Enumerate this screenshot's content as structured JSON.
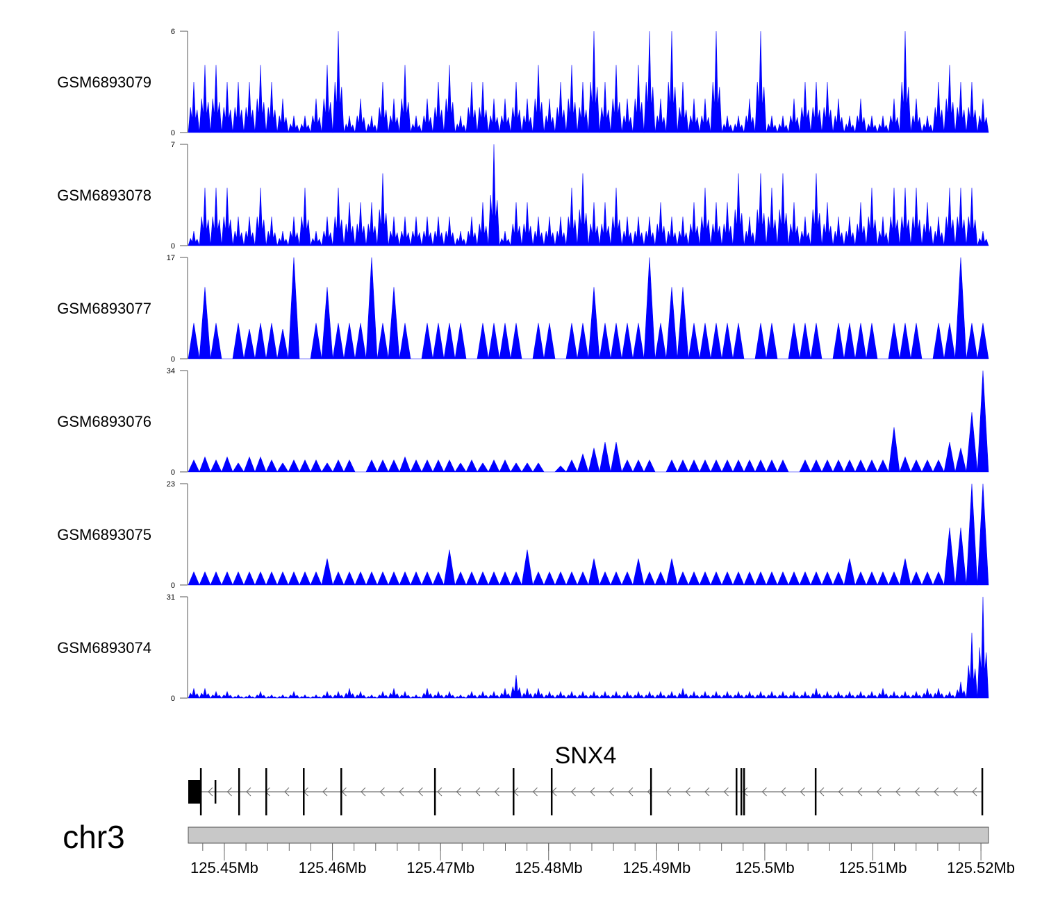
{
  "chart_data": {
    "type": "area",
    "chromosome": "chr3",
    "xlim_mb": [
      125.44666,
      125.5207
    ],
    "x_ticks": [
      "125.45Mb",
      "125.46Mb",
      "125.47Mb",
      "125.48Mb",
      "125.49Mb",
      "125.5Mb",
      "125.51Mb",
      "125.52Mb"
    ],
    "x_tick_values_mb": [
      125.45,
      125.46,
      125.47,
      125.48,
      125.49,
      125.5,
      125.51,
      125.52
    ],
    "minor_tick_step_mb": 0.002,
    "fill_color": "#0000ff",
    "bins": 72,
    "tracks": [
      {
        "name": "GSM6893079",
        "ylim": [
          0,
          6
        ],
        "ymax_label": "6",
        "ymin_label": "0",
        "style": "spiky",
        "values": [
          3,
          4,
          4,
          3,
          3,
          3,
          4,
          3,
          2,
          1,
          1,
          2,
          4,
          6,
          1,
          2,
          1,
          3,
          2,
          4,
          1,
          2,
          3,
          4,
          1,
          3,
          3,
          2,
          2,
          3,
          2,
          4,
          2,
          3,
          4,
          3,
          6,
          3,
          4,
          2,
          4,
          6,
          2,
          6,
          3,
          2,
          2,
          6,
          1,
          1,
          2,
          6,
          1,
          1,
          2,
          3,
          3,
          3,
          2,
          1,
          2,
          1,
          1,
          2,
          6,
          2,
          1,
          3,
          4,
          3,
          3,
          2
        ]
      },
      {
        "name": "GSM6893078",
        "ylim": [
          0,
          7
        ],
        "ymax_label": "7",
        "ymin_label": "0",
        "style": "spiky",
        "values": [
          1,
          4,
          4,
          4,
          2,
          2,
          4,
          2,
          1,
          2,
          4,
          1,
          2,
          4,
          3,
          3,
          3,
          5,
          2,
          2,
          2,
          2,
          2,
          2,
          1,
          2,
          3,
          7,
          1,
          3,
          3,
          2,
          2,
          2,
          4,
          5,
          3,
          3,
          4,
          2,
          2,
          2,
          3,
          2,
          2,
          3,
          4,
          3,
          3,
          5,
          2,
          5,
          4,
          5,
          3,
          2,
          5,
          3,
          2,
          2,
          3,
          4,
          2,
          4,
          4,
          4,
          3,
          2,
          4,
          4,
          4,
          1
        ]
      },
      {
        "name": "GSM6893077",
        "ylim": [
          0,
          17
        ],
        "ymax_label": "17",
        "ymin_label": "0",
        "style": "triangles",
        "values": [
          6,
          12,
          6,
          0,
          6,
          5,
          6,
          6,
          5,
          17,
          0,
          6,
          12,
          6,
          6,
          6,
          17,
          6,
          12,
          6,
          0,
          6,
          6,
          6,
          6,
          0,
          6,
          6,
          6,
          6,
          0,
          6,
          6,
          0,
          6,
          6,
          12,
          6,
          6,
          6,
          6,
          17,
          6,
          12,
          12,
          6,
          6,
          6,
          6,
          6,
          0,
          6,
          6,
          0,
          6,
          6,
          6,
          0,
          6,
          6,
          6,
          6,
          0,
          6,
          6,
          6,
          0,
          6,
          6,
          17,
          6,
          6
        ]
      },
      {
        "name": "GSM6893076",
        "ylim": [
          0,
          34
        ],
        "ymax_label": "34",
        "ymin_label": "0",
        "style": "triangles",
        "values": [
          4,
          5,
          4,
          5,
          3,
          5,
          5,
          4,
          3,
          4,
          4,
          4,
          3,
          4,
          4,
          0,
          4,
          4,
          4,
          5,
          4,
          4,
          4,
          4,
          3,
          4,
          3,
          4,
          4,
          3,
          3,
          3,
          0,
          2,
          4,
          6,
          8,
          10,
          10,
          4,
          4,
          4,
          0,
          4,
          4,
          4,
          4,
          4,
          4,
          4,
          4,
          4,
          4,
          4,
          0,
          4,
          4,
          4,
          4,
          4,
          4,
          4,
          4,
          15,
          5,
          4,
          4,
          4,
          10,
          8,
          20,
          34
        ]
      },
      {
        "name": "GSM6893075",
        "ylim": [
          0,
          23
        ],
        "ymax_label": "23",
        "ymin_label": "0",
        "style": "triangles",
        "values": [
          3,
          3,
          3,
          3,
          3,
          3,
          3,
          3,
          3,
          3,
          3,
          3,
          6,
          3,
          3,
          3,
          3,
          3,
          3,
          3,
          3,
          3,
          3,
          8,
          3,
          3,
          3,
          3,
          3,
          3,
          8,
          3,
          3,
          3,
          3,
          3,
          6,
          3,
          3,
          3,
          6,
          3,
          3,
          6,
          3,
          3,
          3,
          3,
          3,
          3,
          3,
          3,
          3,
          3,
          3,
          3,
          3,
          3,
          3,
          6,
          3,
          3,
          3,
          3,
          6,
          3,
          3,
          3,
          13,
          13,
          23,
          23
        ]
      },
      {
        "name": "GSM6893074",
        "ylim": [
          0,
          31
        ],
        "ymax_label": "31",
        "ymin_label": "0",
        "style": "spiky",
        "values": [
          3,
          3,
          2,
          2,
          1,
          1,
          2,
          1,
          1,
          2,
          1,
          1,
          2,
          2,
          3,
          2,
          1,
          2,
          3,
          2,
          1,
          3,
          2,
          2,
          1,
          2,
          2,
          2,
          3,
          7,
          3,
          3,
          2,
          2,
          2,
          2,
          2,
          2,
          2,
          2,
          2,
          2,
          2,
          2,
          3,
          2,
          2,
          2,
          2,
          2,
          2,
          2,
          2,
          2,
          2,
          2,
          3,
          2,
          2,
          2,
          2,
          2,
          3,
          2,
          2,
          2,
          3,
          3,
          2,
          5,
          20,
          31
        ]
      }
    ],
    "gene": {
      "name": "SNX4",
      "strand": "-",
      "utr_block_mb": [
        125.44666,
        125.44781
      ],
      "exons_mb": [
        125.44781,
        125.44916,
        125.45135,
        125.45386,
        125.45733,
        125.4608,
        125.46947,
        125.47674,
        125.48027,
        125.48946,
        125.49737,
        125.49782,
        125.49807,
        125.50469,
        125.52011
      ],
      "small_exons_mb": [
        125.44916
      ]
    }
  }
}
